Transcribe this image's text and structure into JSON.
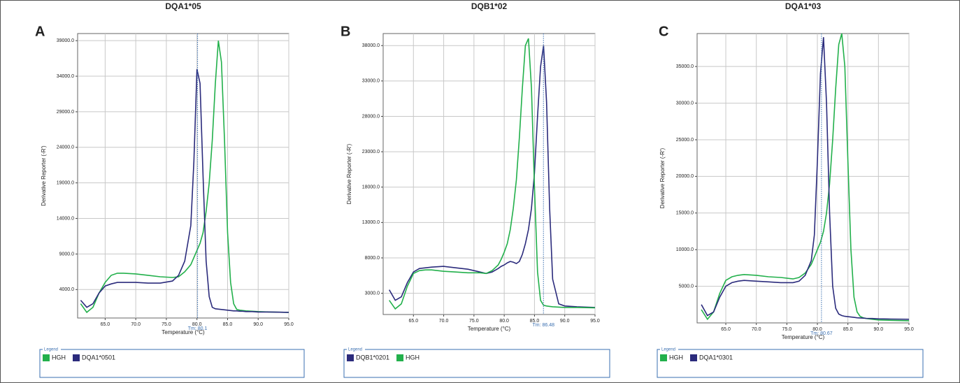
{
  "chart_data": [
    {
      "type": "line",
      "panel_label": "A",
      "title": "DQA1*05",
      "xlabel": "Temperature (°C)",
      "ylabel": "Derivative Reporter (-R')",
      "legend_title": "Legend",
      "grid": true,
      "xlim": [
        60.5,
        95
      ],
      "ylim": [
        0,
        40000
      ],
      "xticks": [
        {
          "value": 65,
          "label": "65.0"
        },
        {
          "value": 70,
          "label": "70.0"
        },
        {
          "value": 75,
          "label": "75.0"
        },
        {
          "value": 80,
          "label": "80.0"
        },
        {
          "value": 85,
          "label": "85.0"
        },
        {
          "value": 90,
          "label": "90.0"
        },
        {
          "value": 95,
          "label": "95.0"
        }
      ],
      "yticks": [
        {
          "value": 4000,
          "label": "4000.0"
        },
        {
          "value": 9000,
          "label": "9000.0"
        },
        {
          "value": 14000,
          "label": "14000.0"
        },
        {
          "value": 19000,
          "label": "19000.0"
        },
        {
          "value": 24000,
          "label": "24000.0"
        },
        {
          "value": 29000,
          "label": "29000.0"
        },
        {
          "value": 34000,
          "label": "34000.0"
        },
        {
          "value": 39000,
          "label": "39000.0"
        }
      ],
      "tm": {
        "value": 80.1,
        "label": "Tm: 80.1"
      },
      "x": [
        61,
        62,
        63,
        64,
        65,
        66,
        67,
        68,
        70,
        72,
        74,
        76,
        77,
        78,
        79,
        79.5,
        80,
        80.5,
        81,
        81.5,
        82,
        82.5,
        83,
        83.5,
        84,
        84.5,
        85,
        85.5,
        86,
        86.5,
        87,
        87.5,
        88,
        89,
        90,
        92,
        95
      ],
      "series": [
        {
          "name": "HGH",
          "color": "#22b04b",
          "values": [
            2000,
            800,
            1500,
            3500,
            5000,
            6000,
            6300,
            6300,
            6200,
            6000,
            5800,
            5700,
            5800,
            6500,
            7500,
            8500,
            9500,
            10500,
            12000,
            15000,
            19000,
            25000,
            33000,
            39000,
            36000,
            25000,
            12000,
            5000,
            2000,
            1200,
            1100,
            1050,
            1000,
            950,
            900,
            850,
            800
          ]
        },
        {
          "name": "DQA1*0501",
          "color": "#2b2b7c",
          "values": [
            2500,
            1500,
            2000,
            3500,
            4500,
            4800,
            5000,
            5000,
            5000,
            4900,
            4900,
            5200,
            6000,
            8000,
            13000,
            22000,
            35000,
            33000,
            20000,
            8000,
            3000,
            1500,
            1300,
            1250,
            1200,
            1150,
            1100,
            1050,
            1000,
            1000,
            950,
            950,
            900,
            900,
            850,
            850,
            800
          ]
        }
      ]
    },
    {
      "type": "line",
      "panel_label": "B",
      "title": "DQB1*02",
      "xlabel": "Temperature (°C)",
      "ylabel": "Derivative Reporter (-R')",
      "legend_title": "Legend",
      "grid": true,
      "xlim": [
        60,
        95
      ],
      "ylim": [
        0,
        39700
      ],
      "xticks": [
        {
          "value": 65,
          "label": "65.0"
        },
        {
          "value": 70,
          "label": "70.0"
        },
        {
          "value": 75,
          "label": "75.0"
        },
        {
          "value": 80,
          "label": "80.0"
        },
        {
          "value": 85,
          "label": "85.0"
        },
        {
          "value": 90,
          "label": "90.0"
        },
        {
          "value": 95,
          "label": "95.0"
        }
      ],
      "yticks": [
        {
          "value": 3000,
          "label": "3000.0"
        },
        {
          "value": 8000,
          "label": "8000.0"
        },
        {
          "value": 13000,
          "label": "13000.0"
        },
        {
          "value": 18000,
          "label": "18000.0"
        },
        {
          "value": 23000,
          "label": "23000.0"
        },
        {
          "value": 28000,
          "label": "28000.0"
        },
        {
          "value": 33000,
          "label": "33000.0"
        },
        {
          "value": 38000,
          "label": "38000.0"
        }
      ],
      "tm": {
        "value": 86.48,
        "label": "Tm: 86.48"
      },
      "x": [
        61,
        62,
        63,
        64,
        65,
        66,
        67,
        68,
        70,
        72,
        74,
        76,
        77,
        78,
        79,
        79.5,
        80,
        80.5,
        81,
        81.5,
        82,
        82.5,
        83,
        83.5,
        84,
        84.5,
        85,
        85.5,
        86,
        86.5,
        87,
        87.5,
        88,
        89,
        90,
        92,
        95
      ],
      "series": [
        {
          "name": "DQB1*0201",
          "color": "#2b2b7c",
          "values": [
            3500,
            2000,
            2500,
            4500,
            6000,
            6500,
            6600,
            6700,
            6800,
            6600,
            6400,
            6000,
            5800,
            6000,
            6500,
            6800,
            7000,
            7300,
            7500,
            7400,
            7200,
            7500,
            8500,
            10000,
            12000,
            15000,
            20000,
            28000,
            35000,
            38000,
            30000,
            15000,
            5000,
            1500,
            1200,
            1100,
            1000
          ]
        },
        {
          "name": "HGH",
          "color": "#22b04b",
          "values": [
            2000,
            800,
            1500,
            4000,
            5800,
            6200,
            6300,
            6300,
            6100,
            6000,
            5900,
            5900,
            5800,
            6200,
            7000,
            7800,
            8800,
            10000,
            12000,
            15000,
            19000,
            25000,
            32000,
            38000,
            39000,
            32000,
            18000,
            6000,
            2000,
            1300,
            1200,
            1150,
            1100,
            1050,
            1000,
            1000,
            950
          ]
        }
      ]
    },
    {
      "type": "line",
      "panel_label": "C",
      "title": "DQA1*03",
      "xlabel": "Temperature (°C)",
      "ylabel": "Derivative Reporter (-R')",
      "legend_title": "Legend",
      "grid": true,
      "xlim": [
        60.3,
        95
      ],
      "ylim": [
        0,
        39500
      ],
      "xticks": [
        {
          "value": 65,
          "label": "65.0"
        },
        {
          "value": 70,
          "label": "70.0"
        },
        {
          "value": 75,
          "label": "75.0"
        },
        {
          "value": 80,
          "label": "80.0"
        },
        {
          "value": 85,
          "label": "85.0"
        },
        {
          "value": 90,
          "label": "90.0"
        },
        {
          "value": 95,
          "label": "95.0"
        }
      ],
      "yticks": [
        {
          "value": 5000,
          "label": "5000.0"
        },
        {
          "value": 10000,
          "label": "10000.0"
        },
        {
          "value": 15000,
          "label": "15000.0"
        },
        {
          "value": 20000,
          "label": "20000.0"
        },
        {
          "value": 25000,
          "label": "25000.0"
        },
        {
          "value": 30000,
          "label": "30000.0"
        },
        {
          "value": 35000,
          "label": "35000.0"
        }
      ],
      "tm": {
        "value": 80.67,
        "label": "Tm: 80.67"
      },
      "x": [
        61,
        62,
        63,
        64,
        65,
        66,
        67,
        68,
        70,
        72,
        74,
        76,
        77,
        78,
        79,
        79.5,
        80,
        80.5,
        81,
        81.5,
        82,
        82.5,
        83,
        83.5,
        84,
        84.5,
        85,
        85.5,
        86,
        86.5,
        87,
        87.5,
        88,
        89,
        90,
        92,
        95
      ],
      "series": [
        {
          "name": "HGH",
          "color": "#22b04b",
          "values": [
            1800,
            500,
            1500,
            4000,
            5800,
            6300,
            6500,
            6600,
            6500,
            6300,
            6200,
            6000,
            6200,
            6800,
            8000,
            9000,
            10000,
            11000,
            12500,
            15000,
            19000,
            25000,
            32000,
            38000,
            39500,
            35000,
            22000,
            10000,
            3500,
            1500,
            900,
            700,
            600,
            500,
            400,
            350,
            300
          ]
        },
        {
          "name": "DQA1*0301",
          "color": "#2b2b7c",
          "values": [
            2500,
            1000,
            1500,
            3500,
            5000,
            5500,
            5700,
            5800,
            5700,
            5600,
            5500,
            5500,
            5700,
            6500,
            8500,
            12000,
            22000,
            34000,
            39000,
            30000,
            15000,
            5000,
            2000,
            1200,
            1000,
            900,
            850,
            800,
            750,
            700,
            680,
            650,
            620,
            600,
            550,
            520,
            500
          ]
        }
      ]
    }
  ]
}
